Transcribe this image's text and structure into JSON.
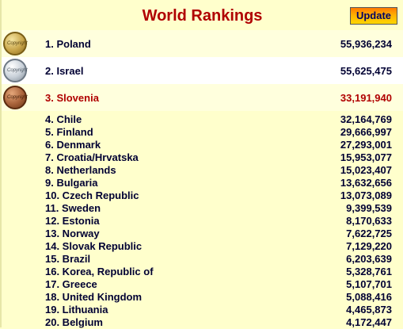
{
  "header": {
    "title": "World Rankings",
    "update_label": "Update"
  },
  "medal_text": "Copyright",
  "colors": {
    "title": "#b00000",
    "bronze_highlight": "#b00000",
    "text": "#000033",
    "background": "#ffffcc"
  },
  "top3": [
    {
      "label": "1. Poland",
      "value": "55,936,234",
      "medal": "gold-medal-icon"
    },
    {
      "label": "2. Israel",
      "value": "55,625,475",
      "medal": "silver-medal-icon"
    },
    {
      "label": "3. Slovenia",
      "value": "33,191,940",
      "medal": "bronze-medal-icon"
    }
  ],
  "rankings": [
    {
      "label": "4. Chile",
      "value": "32,164,769"
    },
    {
      "label": "5. Finland",
      "value": "29,666,997"
    },
    {
      "label": "6. Denmark",
      "value": "27,293,001"
    },
    {
      "label": "7. Croatia/Hrvatska",
      "value": "15,953,077"
    },
    {
      "label": "8. Netherlands",
      "value": "15,023,407"
    },
    {
      "label": "9. Bulgaria",
      "value": "13,632,656"
    },
    {
      "label": "10. Czech Republic",
      "value": "13,073,089"
    },
    {
      "label": "11. Sweden",
      "value": "9,399,539"
    },
    {
      "label": "12. Estonia",
      "value": "8,170,633"
    },
    {
      "label": "13. Norway",
      "value": "7,622,725"
    },
    {
      "label": "14. Slovak Republic",
      "value": "7,129,220"
    },
    {
      "label": "15. Brazil",
      "value": "6,203,639"
    },
    {
      "label": "16. Korea, Republic of",
      "value": "5,328,761"
    },
    {
      "label": "17. Greece",
      "value": "5,107,701"
    },
    {
      "label": "18. United Kingdom",
      "value": "5,088,416"
    },
    {
      "label": "19. Lithuania",
      "value": "4,465,873"
    },
    {
      "label": "20. Belgium",
      "value": "4,172,447"
    }
  ]
}
